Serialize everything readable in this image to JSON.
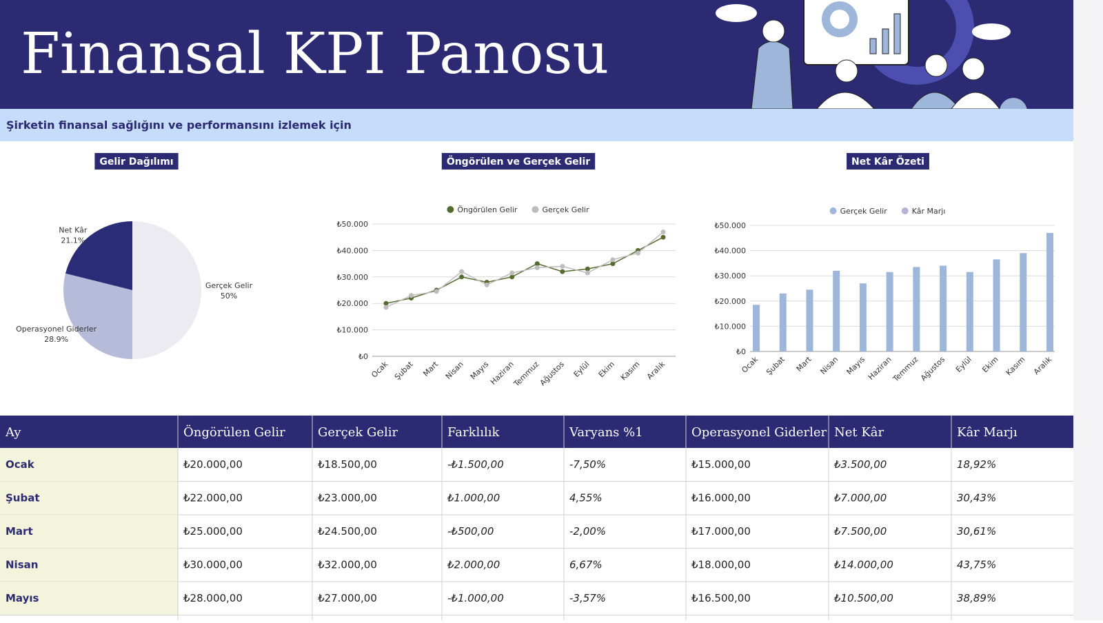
{
  "header": {
    "title": "Finansal KPI Panosu",
    "subtitle": "Şirketin finansal sağlığını ve performansını izlemek için"
  },
  "chart_data": [
    {
      "type": "pie",
      "title": "Gelir Dağılımı",
      "categories": [
        "Gerçek Gelir",
        "Operasyonel Giderler",
        "Net Kâr"
      ],
      "values": [
        50,
        28.9,
        21.1
      ],
      "value_labels": [
        "50%",
        "28.9%",
        "21.1%"
      ],
      "colors": [
        "#ecebf2",
        "#b6bbda",
        "#2a2c77"
      ]
    },
    {
      "type": "line",
      "title": "Öngörülen ve Gerçek Gelir",
      "categories": [
        "Ocak",
        "Şubat",
        "Mart",
        "Nisan",
        "Mayıs",
        "Haziran",
        "Temmuz",
        "Ağustos",
        "Eylül",
        "Ekim",
        "Kasım",
        "Aralık"
      ],
      "series": [
        {
          "name": "Öngörülen Gelir",
          "color": "#556b2f",
          "values": [
            20000,
            22000,
            25000,
            30000,
            28000,
            30000,
            35000,
            32000,
            33000,
            35000,
            40000,
            45000
          ]
        },
        {
          "name": "Gerçek Gelir",
          "color": "#bdbdbd",
          "values": [
            18500,
            23000,
            24500,
            32000,
            27000,
            31500,
            33500,
            34000,
            31500,
            36500,
            39000,
            47000
          ]
        }
      ],
      "ylim": [
        0,
        50000
      ],
      "yticks": [
        {
          "value": 0,
          "label": "₺0"
        },
        {
          "value": 10000,
          "label": "₺10.000"
        },
        {
          "value": 20000,
          "label": "₺20.000"
        },
        {
          "value": 30000,
          "label": "₺30.000"
        },
        {
          "value": 40000,
          "label": "₺40.000"
        },
        {
          "value": 50000,
          "label": "₺50.000"
        }
      ],
      "grid": true,
      "legend": "top"
    },
    {
      "type": "bar",
      "title": "Net Kâr Özeti",
      "categories": [
        "Ocak",
        "Şubat",
        "Mart",
        "Nisan",
        "Mayıs",
        "Haziran",
        "Temmuz",
        "Ağustos",
        "Eylül",
        "Ekim",
        "Kasım",
        "Aralık"
      ],
      "series": [
        {
          "name": "Gerçek Gelir",
          "color": "#9db6da",
          "values": [
            18500,
            23000,
            24500,
            32000,
            27000,
            31500,
            33500,
            34000,
            31500,
            36500,
            39000,
            47000
          ]
        },
        {
          "name": "Kâr Marjı",
          "color": "#b9b2d8",
          "values": [
            0.1892,
            0.3043,
            0.3061,
            0.4375,
            0.3889,
            null,
            null,
            null,
            null,
            null,
            null,
            null
          ]
        }
      ],
      "ylim": [
        0,
        50000
      ],
      "yticks": [
        {
          "value": 0,
          "label": "₺0"
        },
        {
          "value": 10000,
          "label": "₺10.000"
        },
        {
          "value": 20000,
          "label": "₺20.000"
        },
        {
          "value": 30000,
          "label": "₺30.000"
        },
        {
          "value": 40000,
          "label": "₺40.000"
        },
        {
          "value": 50000,
          "label": "₺50.000"
        }
      ],
      "grid": true,
      "legend": "top"
    }
  ],
  "table": {
    "columns": [
      "Ay",
      "Öngörülen Gelir",
      "Gerçek Gelir",
      "Farklılık",
      "Varyans %1",
      "Operasyonel Giderler",
      "Net Kâr",
      "Kâr Marjı"
    ],
    "rows": [
      [
        "Ocak",
        "₺20.000,00",
        "₺18.500,00",
        "-₺1.500,00",
        "-7,50%",
        "₺15.000,00",
        "₺3.500,00",
        "18,92%"
      ],
      [
        "Şubat",
        "₺22.000,00",
        "₺23.000,00",
        "₺1.000,00",
        "4,55%",
        "₺16.000,00",
        "₺7.000,00",
        "30,43%"
      ],
      [
        "Mart",
        "₺25.000,00",
        "₺24.500,00",
        "-₺500,00",
        "-2,00%",
        "₺17.000,00",
        "₺7.500,00",
        "30,61%"
      ],
      [
        "Nisan",
        "₺30.000,00",
        "₺32.000,00",
        "₺2.000,00",
        "6,67%",
        "₺18.000,00",
        "₺14.000,00",
        "43,75%"
      ],
      [
        "Mayıs",
        "₺28.000,00",
        "₺27.000,00",
        "-₺1.000,00",
        "-3,57%",
        "₺16.500,00",
        "₺10.500,00",
        "38,89%"
      ]
    ]
  }
}
